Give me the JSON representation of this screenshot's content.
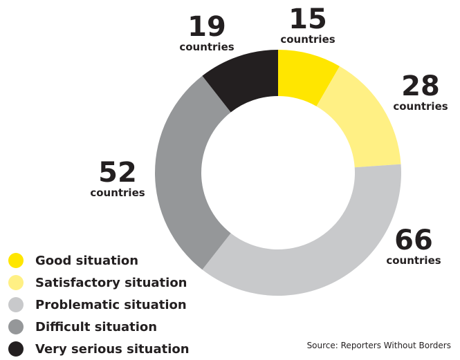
{
  "chart_data": {
    "type": "pie",
    "style": "donut",
    "categories": [
      "Good situation",
      "Satisfactory situation",
      "Problematic situation",
      "Difficult situation",
      "Very serious situation"
    ],
    "values": [
      15,
      28,
      66,
      52,
      19
    ],
    "colors": [
      "#ffe600",
      "#fff084",
      "#c8c9cb",
      "#959799",
      "#231f20"
    ],
    "value_labels": [
      "15",
      "28",
      "66",
      "52",
      "19"
    ],
    "unit_label": "countries",
    "legend_position": "bottom-left",
    "source": "Source: Reporters Without Borders"
  }
}
